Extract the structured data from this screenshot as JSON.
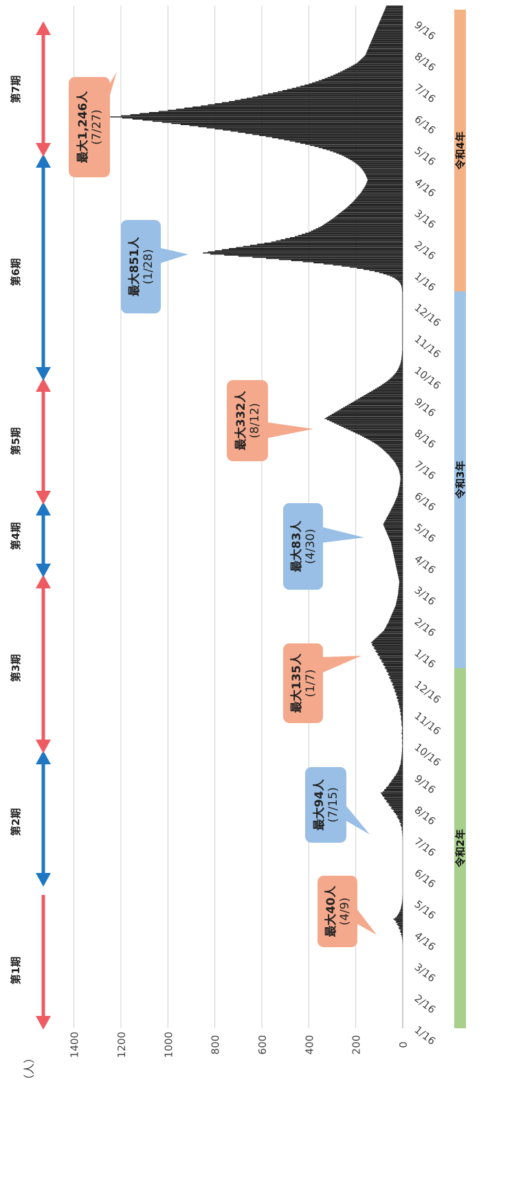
{
  "chart_data": {
    "type": "bar",
    "orientation": "rotated-90-clockwise",
    "ylabel": "（人）",
    "ylim": [
      0,
      1500
    ],
    "yticks": [
      0,
      200,
      400,
      600,
      800,
      1000,
      1200,
      1400
    ],
    "grid": true,
    "xticks": [
      "1/16",
      "2/16",
      "3/16",
      "4/16",
      "5/16",
      "6/16",
      "7/16",
      "8/16",
      "9/16",
      "10/16",
      "11/16",
      "12/16",
      "1/16",
      "2/16",
      "3/16",
      "4/16",
      "5/16",
      "6/16",
      "7/16",
      "8/16",
      "9/16",
      "10/16",
      "11/16",
      "12/16",
      "1/16",
      "2/16",
      "3/16",
      "4/16",
      "5/16",
      "6/16",
      "7/16",
      "8/16",
      "9/16"
    ],
    "series": [
      {
        "values": [
          0,
          0,
          0,
          0,
          0,
          0,
          0,
          0,
          0,
          0,
          0,
          0,
          0,
          0,
          0,
          0,
          0,
          0,
          0,
          0,
          0,
          0,
          0,
          0,
          0,
          0,
          0,
          0,
          0,
          0,
          0,
          0,
          0,
          0,
          0,
          0,
          0,
          0,
          0,
          0,
          0,
          0,
          0,
          0,
          0,
          0,
          0,
          0,
          0,
          0,
          0,
          0,
          0,
          0,
          0,
          0,
          0,
          0,
          0,
          0,
          0,
          0,
          0,
          0,
          0,
          0,
          0,
          0,
          0,
          0,
          0,
          0,
          0,
          0,
          0,
          0,
          0,
          1,
          0,
          2,
          1,
          3,
          2,
          4,
          5,
          8,
          6,
          10,
          12,
          9,
          15,
          18,
          14,
          20,
          25,
          22,
          30,
          28,
          35,
          40,
          33,
          27,
          24,
          20,
          18,
          15,
          13,
          11,
          9,
          8,
          7,
          6,
          5,
          4,
          3,
          3,
          2,
          2,
          1,
          1,
          1,
          0,
          0,
          0,
          0,
          0,
          0,
          0,
          0,
          0,
          0,
          0,
          0,
          0,
          0,
          0,
          0,
          0,
          0,
          0,
          0,
          0,
          0,
          0,
          0,
          0,
          0,
          0,
          0,
          0,
          0,
          0,
          0,
          0,
          0,
          0,
          0,
          0,
          0,
          0,
          0,
          0,
          0,
          0,
          0,
          0,
          0,
          0,
          0,
          0,
          0,
          0,
          1,
          0,
          1,
          1,
          2,
          1,
          3,
          2,
          4,
          5,
          3,
          6,
          8,
          10,
          7,
          12,
          15,
          13,
          18,
          20,
          25,
          22,
          28,
          30,
          35,
          40,
          38,
          45,
          50,
          48,
          55,
          60,
          58,
          65,
          70,
          68,
          75,
          80,
          78,
          85,
          88,
          90,
          94,
          85,
          80,
          78,
          72,
          70,
          65,
          60,
          58,
          55,
          50,
          48,
          45,
          40,
          38,
          35,
          30,
          28,
          25,
          22,
          20,
          18,
          16,
          15,
          13,
          12,
          10,
          9,
          8,
          8,
          7,
          6,
          6,
          5,
          5,
          4,
          4,
          4,
          3,
          3,
          3,
          3,
          2,
          2,
          2,
          3,
          3,
          2,
          2,
          3,
          4,
          3,
          2,
          3,
          5,
          4,
          3,
          4,
          3,
          2,
          3,
          4,
          5,
          6,
          4,
          5,
          6,
          7,
          8,
          6,
          7,
          9,
          10,
          8,
          11,
          12,
          10,
          13,
          15,
          14,
          16,
          18,
          17,
          20,
          22,
          19,
          24,
          26,
          23,
          28,
          30,
          27,
          33,
          35,
          32,
          38,
          40,
          37,
          43,
          45,
          42,
          48,
          52,
          49,
          55,
          58,
          54,
          60,
          63,
          60,
          66,
          70,
          67,
          73,
          77,
          74,
          80,
          84,
          81,
          88,
          92,
          89,
          96,
          100,
          97,
          104,
          108,
          105,
          112,
          116,
          113,
          120,
          124,
          121,
          128,
          132,
          129,
          135,
          130,
          125,
          120,
          115,
          110,
          105,
          100,
          95,
          90,
          85,
          80,
          78,
          75,
          72,
          70,
          68,
          65,
          62,
          60,
          58,
          56,
          54,
          52,
          50,
          48,
          46,
          44,
          42,
          40,
          38,
          36,
          34,
          32,
          30,
          29,
          28,
          27,
          26,
          25,
          24,
          23,
          22,
          21,
          20,
          20,
          19,
          19,
          18,
          18,
          17,
          17,
          16,
          16,
          15,
          15,
          15,
          16,
          17,
          18,
          19,
          20,
          21,
          22,
          23,
          24,
          25,
          26,
          27,
          28,
          29,
          30,
          31,
          32,
          33,
          34,
          35,
          36,
          37,
          38,
          39,
          40,
          41,
          42,
          43,
          44,
          45,
          46,
          47,
          48,
          49,
          50,
          52,
          54,
          56,
          58,
          60,
          62,
          64,
          66,
          68,
          70,
          72,
          74,
          76,
          78,
          80,
          82,
          83,
          80,
          78,
          75,
          72,
          70,
          68,
          65,
          62,
          60,
          57,
          55,
          52,
          50,
          48,
          45,
          43,
          40,
          38,
          36,
          34,
          32,
          30,
          28,
          26,
          24,
          22,
          21,
          20,
          19,
          18,
          17,
          16,
          15,
          14,
          13,
          12,
          12,
          11,
          11,
          10,
          10,
          10,
          10,
          11,
          12,
          13,
          14,
          15,
          16,
          18,
          20,
          22,
          25,
          28,
          30,
          33,
          36,
          40,
          44,
          48,
          52,
          56,
          60,
          65,
          70,
          75,
          80,
          85,
          90,
          96,
          102,
          108,
          115,
          122,
          130,
          138,
          146,
          155,
          164,
          173,
          182,
          192,
          202,
          212,
          222,
          232,
          242,
          252,
          262,
          272,
          282,
          292,
          302,
          312,
          322,
          332,
          325,
          318,
          310,
          302,
          294,
          286,
          278,
          270,
          262,
          254,
          246,
          238,
          230,
          222,
          214,
          206,
          198,
          190,
          182,
          174,
          166,
          158,
          150,
          142,
          134,
          126,
          118,
          110,
          102,
          95,
          88,
          81,
          74,
          68,
          62,
          56,
          51,
          46,
          41,
          37,
          33,
          29,
          26,
          23,
          20,
          18,
          16,
          14,
          12,
          10,
          9,
          8,
          7,
          6,
          5,
          5,
          4,
          4,
          3,
          3,
          3,
          2,
          2,
          2,
          2,
          2,
          2,
          2,
          2,
          2,
          2,
          2,
          2,
          2,
          2,
          2,
          2,
          2,
          2,
          2,
          2,
          2,
          2,
          2,
          2,
          2,
          2,
          2,
          2,
          2,
          2,
          2,
          2,
          2,
          2,
          2,
          2,
          2,
          2,
          2,
          2,
          2,
          2,
          2,
          2,
          2,
          2,
          2,
          2,
          2,
          2,
          2,
          2,
          2,
          2,
          3,
          3,
          3,
          4,
          5,
          6,
          8,
          10,
          13,
          17,
          22,
          28,
          35,
          44,
          55,
          68,
          83,
          100,
          120,
          142,
          167,
          195,
          226,
          260,
          297,
          337,
          380,
          426,
          475,
          527,
          582,
          640,
          700,
          760,
          820,
          851,
          830,
          800,
          770,
          740,
          710,
          680,
          650,
          620,
          590,
          560,
          540,
          520,
          500,
          480,
          460,
          445,
          430,
          415,
          400,
          390,
          380,
          370,
          360,
          350,
          342,
          335,
          328,
          321,
          314,
          307,
          300,
          294,
          288,
          282,
          276,
          270,
          264,
          258,
          252,
          246,
          240,
          235,
          230,
          225,
          220,
          215,
          210,
          206,
          202,
          198,
          194,
          190,
          186,
          182,
          178,
          175,
          172,
          169,
          166,
          163,
          160,
          158,
          156,
          154,
          152,
          150,
          150,
          152,
          154,
          156,
          158,
          160,
          163,
          166,
          169,
          172,
          176,
          180,
          185,
          190,
          196,
          202,
          209,
          216,
          224,
          232,
          241,
          250,
          260,
          271,
          283,
          296,
          310,
          325,
          341,
          358,
          376,
          395,
          415,
          436,
          458,
          481,
          505,
          530,
          556,
          583,
          611,
          640,
          670,
          701,
          733,
          766,
          800,
          835,
          871,
          908,
          946,
          985,
          1025,
          1066,
          1108,
          1151,
          1195,
          1246,
          1200,
          1160,
          1120,
          1080,
          1040,
          1000,
          965,
          930,
          895,
          860,
          830,
          800,
          770,
          740,
          715,
          690,
          665,
          640,
          618,
          596,
          574,
          552,
          532,
          512,
          492,
          472,
          454,
          436,
          418,
          400,
          386,
          372,
          358,
          344,
          332,
          320,
          308,
          296,
          286,
          276,
          266,
          256,
          247,
          238,
          229,
          220,
          212,
          204,
          196,
          190,
          185,
          180,
          175,
          170,
          165,
          160,
          158,
          156,
          154,
          152,
          150,
          148,
          146,
          144,
          142,
          140,
          138,
          136,
          134,
          132,
          130,
          128,
          126,
          124,
          122,
          120,
          118,
          116,
          114,
          112,
          110,
          108,
          106,
          104,
          102,
          100,
          98,
          96,
          94,
          92,
          90,
          88,
          86,
          84,
          82,
          80,
          78,
          76,
          74,
          72,
          70
        ]
      }
    ],
    "annotations": [
      {
        "text": "最大40人",
        "date": "(4/9)",
        "color": "#f5a98c"
      },
      {
        "text": "最大94人",
        "date": "(7/15)",
        "color": "#99bfe6"
      },
      {
        "text": "最大135人",
        "date": "(1/7)",
        "color": "#f5a98c"
      },
      {
        "text": "最大83人",
        "date": "(4/30)",
        "color": "#99bfe6"
      },
      {
        "text": "最大332人",
        "date": "(8/12)",
        "color": "#f5a98c"
      },
      {
        "text": "最大851人",
        "date": "(1/28)",
        "color": "#99bfe6"
      },
      {
        "text": "最大1,246人",
        "date": "(7/27)",
        "color": "#f5a98c"
      }
    ],
    "periods": [
      {
        "label": "第1期",
        "color": "#ef5b63"
      },
      {
        "label": "第2期",
        "color": "#1f77c4"
      },
      {
        "label": "第3期",
        "color": "#ef5b63"
      },
      {
        "label": "第4期",
        "color": "#1f77c4"
      },
      {
        "label": "第5期",
        "color": "#ef5b63"
      },
      {
        "label": "第6期",
        "color": "#1f77c4"
      },
      {
        "label": "第7期",
        "color": "#ef5b63"
      }
    ],
    "eras": [
      {
        "label": "令和2年",
        "color": "#a7d08c"
      },
      {
        "label": "令和3年",
        "color": "#9dc3e6"
      },
      {
        "label": "令和4年",
        "color": "#f4b183"
      }
    ]
  }
}
